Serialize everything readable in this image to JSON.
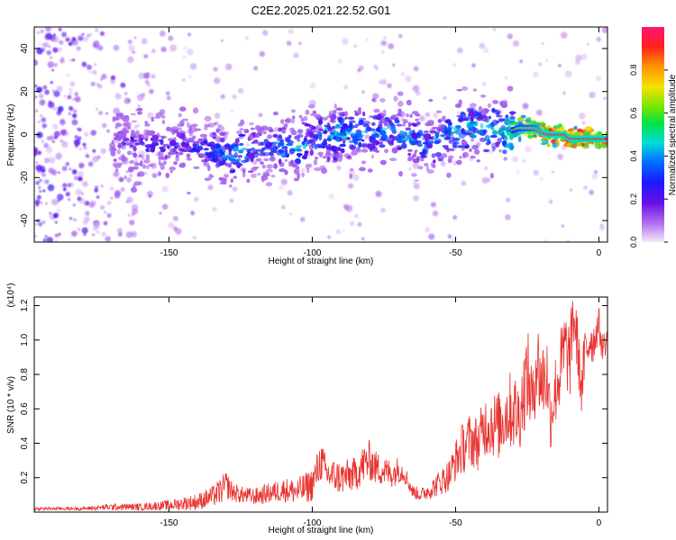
{
  "title": "C2E2.2025.021.22.52.G01",
  "chart_data": [
    {
      "type": "heatmap",
      "xlabel": "Height of straight line (km)",
      "ylabel": "Frequency (Hz)",
      "xlim": [
        -197,
        3
      ],
      "ylim": [
        -50,
        50
      ],
      "xticks": [
        -150,
        -100,
        -50,
        0
      ],
      "yticks": [
        -40,
        -20,
        0,
        20,
        40
      ],
      "colorbar": {
        "label": "Normalized spectral amplitude",
        "range": [
          0,
          1
        ],
        "ticks": [
          0.0,
          0.2,
          0.4,
          0.6,
          0.8
        ]
      },
      "ridge": {
        "x": [
          -197,
          -170,
          -165,
          -160,
          -150,
          -145,
          -140,
          -135,
          -130,
          -125,
          -120,
          -115,
          -110,
          -105,
          -100,
          -95,
          -90,
          -85,
          -80,
          -75,
          -70,
          -65,
          -60,
          -55,
          -50,
          -45,
          -40,
          -35,
          -30,
          -28,
          -25,
          -22,
          -20,
          -18,
          -15,
          -12,
          -10,
          -8,
          -5,
          0,
          3
        ],
        "y": [
          -3,
          -3,
          -4,
          -5,
          -5,
          -5,
          -6,
          -8,
          -10,
          -9,
          -6,
          -5,
          -6,
          -7,
          -3,
          -1,
          0,
          0,
          1,
          2,
          1,
          -2,
          -5,
          -2,
          2,
          4,
          2,
          1,
          2,
          3,
          3,
          3,
          1,
          0,
          0,
          0,
          -2,
          -2,
          -2,
          -2,
          -2
        ],
        "amplitude": [
          0.15,
          0.2,
          0.25,
          0.3,
          0.3,
          0.3,
          0.3,
          0.4,
          0.45,
          0.45,
          0.4,
          0.4,
          0.45,
          0.45,
          0.4,
          0.45,
          0.5,
          0.45,
          0.45,
          0.45,
          0.45,
          0.45,
          0.4,
          0.45,
          0.5,
          0.5,
          0.5,
          0.55,
          0.6,
          0.7,
          0.75,
          0.8,
          0.9,
          0.95,
          0.95,
          0.95,
          0.95,
          0.95,
          0.95,
          0.95,
          0.95
        ]
      }
    },
    {
      "type": "line",
      "xlabel": "Height of straight line (km)",
      "ylabel": "SNR (10 * v/v)",
      "scale_label": "(x10⁴)",
      "xlim": [
        -197,
        3
      ],
      "ylim": [
        0,
        1.25
      ],
      "xticks": [
        -150,
        -100,
        -50,
        0
      ],
      "yticks": [
        0.2,
        0.4,
        0.6,
        0.8,
        1.0,
        1.2
      ],
      "color": "#e8332f",
      "series": [
        {
          "x": [
            -197,
            -180,
            -170,
            -160,
            -150,
            -145,
            -140,
            -135,
            -132,
            -130,
            -128,
            -125,
            -120,
            -115,
            -110,
            -105,
            -100,
            -97,
            -95,
            -90,
            -85,
            -82,
            -80,
            -78,
            -75,
            -72,
            -70,
            -68,
            -65,
            -62,
            -60,
            -58,
            -55,
            -52,
            -50,
            -48,
            -45,
            -42,
            -40,
            -38,
            -35,
            -32,
            -30,
            -28,
            -26,
            -25,
            -23,
            -22,
            -20,
            -18,
            -17,
            -15,
            -13,
            -12,
            -10,
            -9,
            -8,
            -6,
            -5,
            -3,
            -2,
            0,
            1,
            3
          ],
          "y": [
            0.02,
            0.02,
            0.03,
            0.03,
            0.04,
            0.05,
            0.06,
            0.09,
            0.12,
            0.16,
            0.12,
            0.1,
            0.09,
            0.11,
            0.13,
            0.12,
            0.16,
            0.3,
            0.22,
            0.2,
            0.22,
            0.28,
            0.3,
            0.26,
            0.24,
            0.22,
            0.25,
            0.23,
            0.12,
            0.1,
            0.12,
            0.14,
            0.18,
            0.22,
            0.3,
            0.36,
            0.42,
            0.4,
            0.5,
            0.52,
            0.5,
            0.58,
            0.6,
            0.55,
            0.72,
            0.8,
            0.62,
            0.9,
            0.76,
            0.8,
            0.55,
            0.72,
            0.85,
            0.95,
            0.88,
            1.15,
            1.05,
            0.7,
            0.9,
            1.02,
            0.98,
            1.1,
            0.96,
            1.0
          ],
          "noise_amplitude": [
            0.01,
            0.01,
            0.02,
            0.02,
            0.03,
            0.04,
            0.05,
            0.06,
            0.08,
            0.08,
            0.06,
            0.05,
            0.05,
            0.06,
            0.07,
            0.08,
            0.1,
            0.12,
            0.1,
            0.1,
            0.1,
            0.12,
            0.12,
            0.1,
            0.09,
            0.08,
            0.08,
            0.06,
            0.04,
            0.04,
            0.05,
            0.06,
            0.08,
            0.1,
            0.12,
            0.15,
            0.16,
            0.16,
            0.18,
            0.2,
            0.2,
            0.22,
            0.24,
            0.22,
            0.25,
            0.28,
            0.22,
            0.28,
            0.25,
            0.25,
            0.2,
            0.22,
            0.25,
            0.25,
            0.22,
            0.2,
            0.2,
            0.15,
            0.18,
            0.16,
            0.12,
            0.1,
            0.08,
            0.08
          ]
        }
      ]
    }
  ]
}
